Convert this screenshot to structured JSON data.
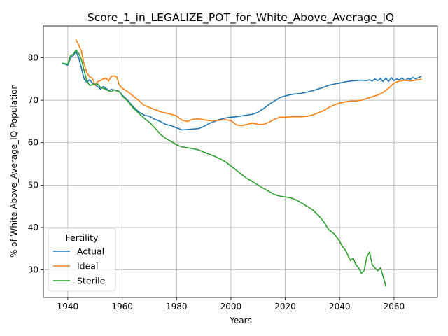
{
  "chart_data": {
    "type": "line",
    "title": "Score_1_in_LEGALIZE_POT_for_White_Above_Average_IQ",
    "xlabel": "Years",
    "ylabel": "% of White Above_Average_IQ Population",
    "xlim": [
      1931,
      2076
    ],
    "ylim": [
      23.5,
      87.5
    ],
    "xticks": [
      1940,
      1960,
      1980,
      2000,
      2020,
      2040,
      2060
    ],
    "yticks": [
      30,
      40,
      50,
      60,
      70,
      80
    ],
    "grid": true,
    "legend": {
      "title": "Fertility",
      "position": "lower-left"
    },
    "series": [
      {
        "name": "Actual",
        "color": "#1f77b4",
        "x": [
          1938,
          1939,
          1940,
          1941,
          1942,
          1943,
          1944,
          1945,
          1946,
          1947,
          1948,
          1949,
          1950,
          1951,
          1952,
          1953,
          1954,
          1955,
          1956,
          1957,
          1958,
          1959,
          1960,
          1962,
          1964,
          1966,
          1968,
          1970,
          1972,
          1974,
          1976,
          1978,
          1980,
          1982,
          1984,
          1986,
          1988,
          1990,
          1992,
          1994,
          1996,
          1998,
          2000,
          2002,
          2004,
          2006,
          2008,
          2010,
          2012,
          2014,
          2016,
          2018,
          2020,
          2022,
          2024,
          2026,
          2028,
          2030,
          2032,
          2034,
          2036,
          2038,
          2040,
          2042,
          2044,
          2046,
          2048,
          2050,
          2051,
          2052,
          2053,
          2054,
          2055,
          2056,
          2057,
          2058,
          2059,
          2060,
          2061,
          2062,
          2063,
          2064,
          2065,
          2066,
          2067,
          2068,
          2069,
          2070
        ],
        "y": [
          78.6,
          78.5,
          78.2,
          80.0,
          80.5,
          81.5,
          80.0,
          77.5,
          75.0,
          74.2,
          74.8,
          74.0,
          73.6,
          73.2,
          72.6,
          73.2,
          72.8,
          72.3,
          72.5,
          72.4,
          72.3,
          72.0,
          71.2,
          70.0,
          68.5,
          67.3,
          66.5,
          66.2,
          65.5,
          65.0,
          64.3,
          64.0,
          63.5,
          63.0,
          63.1,
          63.2,
          63.3,
          63.8,
          64.5,
          65.0,
          65.5,
          65.8,
          66.0,
          66.1,
          66.3,
          66.5,
          66.7,
          67.2,
          68.0,
          69.0,
          69.8,
          70.6,
          71.0,
          71.3,
          71.5,
          71.6,
          71.9,
          72.2,
          72.6,
          73.0,
          73.5,
          73.8,
          74.0,
          74.3,
          74.5,
          74.6,
          74.7,
          74.6,
          74.8,
          74.5,
          75.0,
          74.6,
          75.1,
          74.4,
          75.2,
          74.4,
          75.3,
          74.6,
          75.0,
          74.8,
          75.2,
          74.6,
          75.1,
          74.9,
          75.4,
          75.0,
          75.3,
          75.6
        ]
      },
      {
        "name": "Ideal",
        "color": "#ff7f0e",
        "x": [
          1943,
          1944,
          1945,
          1946,
          1947,
          1948,
          1949,
          1950,
          1951,
          1952,
          1953,
          1954,
          1955,
          1956,
          1957,
          1958,
          1959,
          1960,
          1962,
          1964,
          1966,
          1968,
          1970,
          1972,
          1974,
          1976,
          1978,
          1980,
          1982,
          1984,
          1986,
          1988,
          1990,
          1992,
          1994,
          1996,
          1998,
          2000,
          2002,
          2004,
          2006,
          2008,
          2010,
          2012,
          2014,
          2016,
          2018,
          2020,
          2022,
          2024,
          2026,
          2028,
          2030,
          2032,
          2034,
          2036,
          2038,
          2040,
          2042,
          2044,
          2046,
          2048,
          2050,
          2052,
          2054,
          2056,
          2058,
          2060,
          2062,
          2064,
          2066,
          2068,
          2070
        ],
        "y": [
          84.2,
          83.0,
          81.5,
          78.5,
          76.5,
          75.5,
          75.2,
          73.5,
          74.4,
          74.6,
          75.0,
          75.2,
          74.5,
          75.6,
          75.7,
          75.5,
          73.5,
          72.8,
          72.0,
          71.0,
          70.0,
          68.8,
          68.3,
          67.8,
          67.3,
          67.0,
          66.7,
          66.3,
          65.3,
          65.0,
          65.5,
          65.6,
          65.4,
          65.2,
          65.2,
          65.3,
          65.4,
          65.2,
          64.2,
          64.0,
          64.3,
          64.6,
          64.3,
          64.3,
          64.8,
          65.5,
          66.0,
          66.0,
          66.1,
          66.1,
          66.1,
          66.2,
          66.5,
          67.0,
          67.5,
          68.3,
          68.9,
          69.3,
          69.6,
          69.8,
          69.8,
          70.0,
          70.4,
          70.8,
          71.2,
          71.8,
          72.8,
          74.0,
          74.5,
          74.7,
          74.5,
          74.7,
          74.9
        ]
      },
      {
        "name": "Sterile",
        "color": "#2ca02c",
        "x": [
          1938,
          1939,
          1940,
          1941,
          1942,
          1943,
          1944,
          1945,
          1946,
          1947,
          1948,
          1949,
          1950,
          1951,
          1952,
          1953,
          1954,
          1955,
          1956,
          1957,
          1958,
          1959,
          1960,
          1962,
          1964,
          1966,
          1968,
          1970,
          1972,
          1974,
          1976,
          1978,
          1980,
          1982,
          1984,
          1986,
          1988,
          1990,
          1992,
          1994,
          1996,
          1998,
          2000,
          2002,
          2004,
          2006,
          2008,
          2010,
          2012,
          2014,
          2016,
          2018,
          2020,
          2022,
          2024,
          2026,
          2028,
          2030,
          2032,
          2034,
          2036,
          2038,
          2040,
          2041,
          2042,
          2043,
          2044,
          2045,
          2046,
          2047,
          2048,
          2049,
          2050,
          2051,
          2052,
          2053,
          2054,
          2055,
          2056,
          2057
        ],
        "y": [
          78.7,
          78.6,
          78.5,
          80.5,
          80.8,
          81.8,
          81.0,
          79.5,
          77.0,
          74.5,
          73.5,
          73.6,
          73.8,
          73.8,
          73.0,
          72.8,
          72.5,
          72.2,
          72.0,
          72.4,
          72.2,
          72.0,
          71.0,
          69.8,
          68.2,
          67.0,
          65.8,
          64.8,
          63.5,
          62.0,
          61.0,
          60.3,
          59.5,
          59.0,
          58.8,
          58.6,
          58.3,
          57.8,
          57.3,
          56.8,
          56.2,
          55.5,
          54.5,
          53.5,
          52.5,
          51.5,
          50.8,
          50.0,
          49.2,
          48.5,
          47.8,
          47.4,
          47.2,
          47.0,
          46.5,
          45.8,
          45.0,
          44.2,
          43.0,
          41.5,
          39.5,
          38.5,
          36.8,
          35.5,
          34.8,
          33.5,
          32.2,
          32.8,
          31.2,
          30.5,
          29.2,
          29.8,
          33.0,
          34.2,
          31.2,
          30.5,
          29.8,
          30.5,
          28.5,
          26.2
        ]
      }
    ]
  }
}
